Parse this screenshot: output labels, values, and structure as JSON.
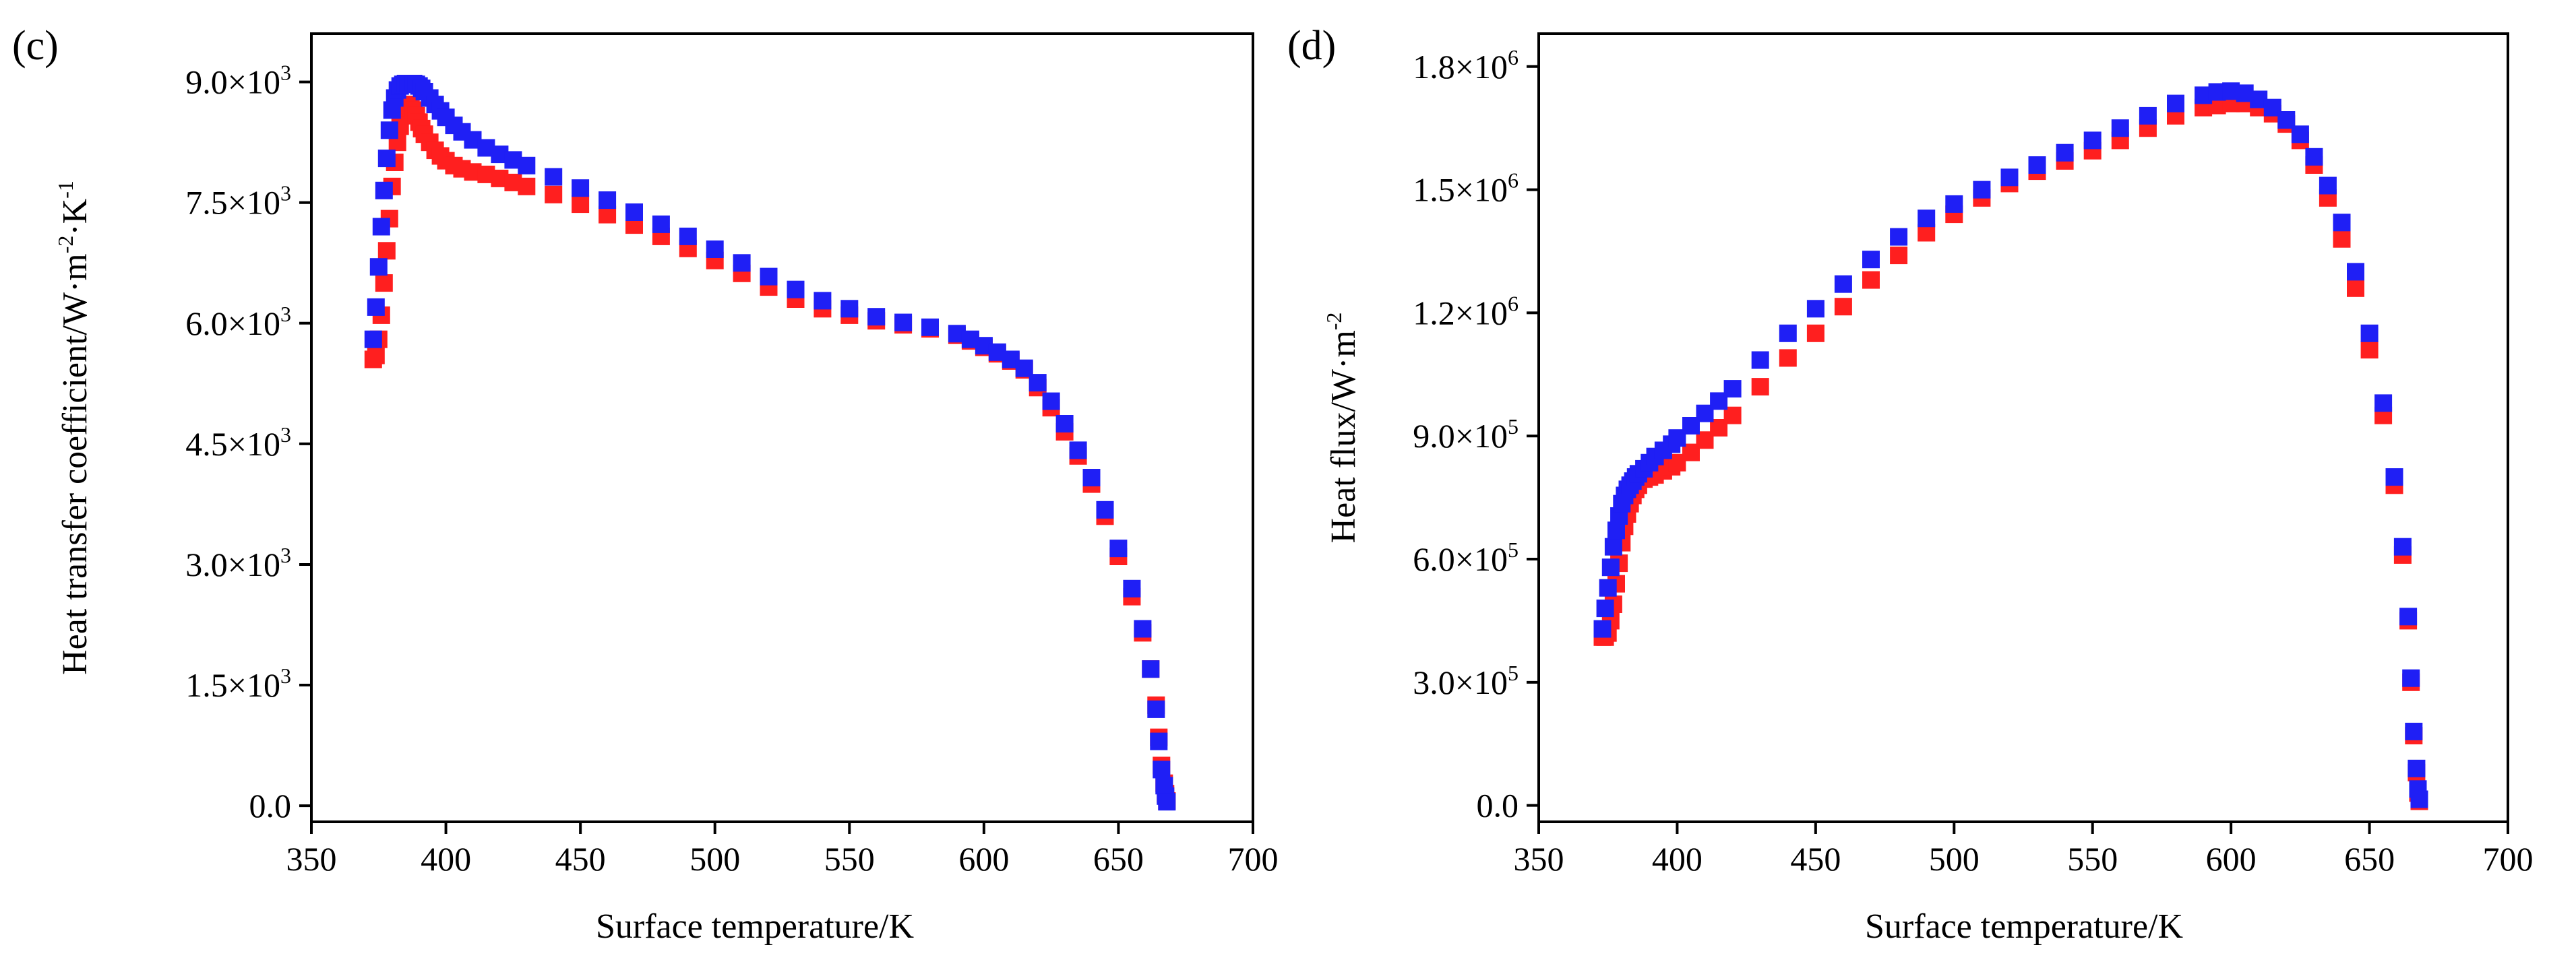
{
  "colors": {
    "series_red": "#ff1f1f",
    "series_blue": "#1f1ff5",
    "axis": "#000000"
  },
  "chart_data": [
    {
      "type": "scatter",
      "panel_label": "(c)",
      "title": "",
      "xlabel": "Surface temperature/K",
      "ylabel": "Heat transfer coefficient/W·m⁻²·K⁻¹",
      "ylabel_parts": {
        "main": "Heat transfer coefficient/W·m",
        "exp1": "-2",
        "mid": "·K",
        "exp2": "-1"
      },
      "xlim": [
        350,
        700
      ],
      "ylim": [
        -200,
        9600
      ],
      "xticks": [
        350,
        400,
        450,
        500,
        550,
        600,
        650,
        700
      ],
      "yticks": [
        0,
        1500,
        3000,
        4500,
        6000,
        7500,
        9000
      ],
      "ytick_labels": [
        {
          "mant": "0.0",
          "exp": ""
        },
        {
          "mant": "1.5×10",
          "exp": "3"
        },
        {
          "mant": "3.0×10",
          "exp": "3"
        },
        {
          "mant": "4.5×10",
          "exp": "3"
        },
        {
          "mant": "6.0×10",
          "exp": "3"
        },
        {
          "mant": "7.5×10",
          "exp": "3"
        },
        {
          "mant": "9.0×10",
          "exp": "3"
        }
      ],
      "grid": false,
      "series": [
        {
          "name": "red",
          "color": "#ff1f1f",
          "x": [
            373,
            374,
            375,
            376,
            377,
            378,
            379,
            380,
            381,
            382,
            383,
            384,
            385,
            386,
            387,
            388,
            389,
            390,
            391,
            392,
            394,
            396,
            398,
            400,
            403,
            406,
            410,
            415,
            420,
            425,
            430,
            440,
            450,
            460,
            470,
            480,
            490,
            500,
            510,
            520,
            530,
            540,
            550,
            560,
            570,
            580,
            590,
            595,
            600,
            605,
            610,
            615,
            620,
            625,
            630,
            635,
            640,
            645,
            650,
            655,
            659,
            662,
            664,
            665,
            666,
            667,
            667.5,
            668
          ],
          "y": [
            5550,
            5600,
            5800,
            6100,
            6500,
            6900,
            7300,
            7700,
            8000,
            8250,
            8450,
            8600,
            8680,
            8720,
            8700,
            8650,
            8580,
            8500,
            8420,
            8350,
            8250,
            8150,
            8080,
            8020,
            7960,
            7920,
            7880,
            7850,
            7800,
            7750,
            7700,
            7600,
            7480,
            7350,
            7220,
            7080,
            6930,
            6780,
            6620,
            6450,
            6300,
            6180,
            6100,
            6030,
            5980,
            5930,
            5850,
            5780,
            5700,
            5620,
            5530,
            5420,
            5200,
            4950,
            4650,
            4350,
            4000,
            3600,
            3100,
            2600,
            2150,
            1700,
            1250,
            850,
            500,
            280,
            150,
            60
          ]
        },
        {
          "name": "blue",
          "color": "#1f1ff5",
          "x": [
            373,
            374,
            375,
            376,
            377,
            378,
            379,
            380,
            381,
            382,
            383,
            384,
            385,
            386,
            387,
            388,
            389,
            390,
            391,
            392,
            394,
            396,
            398,
            400,
            403,
            406,
            410,
            415,
            420,
            425,
            430,
            440,
            450,
            460,
            470,
            480,
            490,
            500,
            510,
            520,
            530,
            540,
            550,
            560,
            570,
            580,
            590,
            595,
            600,
            605,
            610,
            615,
            620,
            625,
            630,
            635,
            640,
            645,
            650,
            655,
            659,
            662,
            664,
            665,
            666,
            667,
            667.5,
            668
          ],
          "y": [
            5800,
            6200,
            6700,
            7200,
            7650,
            8050,
            8400,
            8650,
            8800,
            8900,
            8950,
            8970,
            8980,
            8980,
            8980,
            8980,
            8970,
            8950,
            8920,
            8880,
            8800,
            8720,
            8640,
            8560,
            8460,
            8380,
            8280,
            8180,
            8100,
            8030,
            7960,
            7820,
            7680,
            7530,
            7380,
            7230,
            7080,
            6920,
            6750,
            6580,
            6420,
            6280,
            6180,
            6080,
            6010,
            5950,
            5870,
            5800,
            5720,
            5640,
            5550,
            5440,
            5260,
            5030,
            4750,
            4420,
            4080,
            3680,
            3200,
            2700,
            2200,
            1700,
            1200,
            800,
            450,
            250,
            120,
            50
          ]
        }
      ]
    },
    {
      "type": "scatter",
      "panel_label": "(d)",
      "title": "",
      "xlabel": "Surface temperature/K",
      "ylabel": "Heat flux/W·m⁻²",
      "ylabel_parts": {
        "main": "Heat flux/W·m",
        "exp1": "-2"
      },
      "xlim": [
        350,
        700
      ],
      "ylim": [
        -40000,
        1880000
      ],
      "xticks": [
        350,
        400,
        450,
        500,
        550,
        600,
        650,
        700
      ],
      "yticks": [
        0,
        300000,
        600000,
        900000,
        1200000,
        1500000,
        1800000
      ],
      "ytick_labels": [
        {
          "mant": "0.0",
          "exp": ""
        },
        {
          "mant": "3.0×10",
          "exp": "5"
        },
        {
          "mant": "6.0×10",
          "exp": "5"
        },
        {
          "mant": "9.0×10",
          "exp": "5"
        },
        {
          "mant": "1.2×10",
          "exp": "6"
        },
        {
          "mant": "1.5×10",
          "exp": "6"
        },
        {
          "mant": "1.8×10",
          "exp": "6"
        }
      ],
      "grid": false,
      "series": [
        {
          "name": "red",
          "color": "#ff1f1f",
          "x": [
            373,
            374,
            375,
            376,
            377,
            378,
            379,
            380,
            381,
            382,
            383,
            384,
            385,
            386,
            388,
            390,
            392,
            395,
            398,
            400,
            405,
            410,
            415,
            420,
            430,
            440,
            450,
            460,
            470,
            480,
            490,
            500,
            510,
            520,
            530,
            540,
            550,
            560,
            570,
            580,
            590,
            595,
            600,
            605,
            610,
            615,
            620,
            625,
            630,
            635,
            640,
            645,
            650,
            655,
            659,
            662,
            664,
            665,
            666,
            667,
            667.5,
            668
          ],
          "y": [
            410000,
            410000,
            420000,
            450000,
            490000,
            540000,
            590000,
            640000,
            680000,
            710000,
            735000,
            755000,
            770000,
            780000,
            795000,
            800000,
            805000,
            815000,
            825000,
            835000,
            860000,
            890000,
            920000,
            950000,
            1020000,
            1090000,
            1150000,
            1215000,
            1280000,
            1340000,
            1395000,
            1440000,
            1480000,
            1515000,
            1545000,
            1570000,
            1595000,
            1620000,
            1650000,
            1680000,
            1700000,
            1705000,
            1710000,
            1710000,
            1700000,
            1685000,
            1660000,
            1620000,
            1560000,
            1480000,
            1380000,
            1260000,
            1110000,
            950000,
            780000,
            610000,
            450000,
            300000,
            170000,
            80000,
            30000,
            10000
          ]
        },
        {
          "name": "blue",
          "color": "#1f1ff5",
          "x": [
            373,
            374,
            375,
            376,
            377,
            378,
            379,
            380,
            381,
            382,
            383,
            384,
            385,
            386,
            388,
            390,
            392,
            395,
            398,
            400,
            405,
            410,
            415,
            420,
            430,
            440,
            450,
            460,
            470,
            480,
            490,
            500,
            510,
            520,
            530,
            540,
            550,
            560,
            570,
            580,
            590,
            595,
            600,
            605,
            610,
            615,
            620,
            625,
            630,
            635,
            640,
            645,
            650,
            655,
            659,
            662,
            664,
            665,
            666,
            667,
            667.5,
            668
          ],
          "y": [
            430000,
            480000,
            530000,
            580000,
            630000,
            670000,
            705000,
            735000,
            755000,
            770000,
            780000,
            790000,
            800000,
            808000,
            820000,
            835000,
            850000,
            865000,
            880000,
            895000,
            925000,
            955000,
            985000,
            1015000,
            1085000,
            1150000,
            1210000,
            1270000,
            1330000,
            1385000,
            1430000,
            1465000,
            1500000,
            1530000,
            1560000,
            1590000,
            1620000,
            1650000,
            1680000,
            1710000,
            1730000,
            1738000,
            1740000,
            1735000,
            1720000,
            1700000,
            1670000,
            1635000,
            1580000,
            1510000,
            1420000,
            1300000,
            1150000,
            980000,
            800000,
            630000,
            460000,
            310000,
            180000,
            90000,
            40000,
            15000
          ]
        }
      ]
    }
  ]
}
